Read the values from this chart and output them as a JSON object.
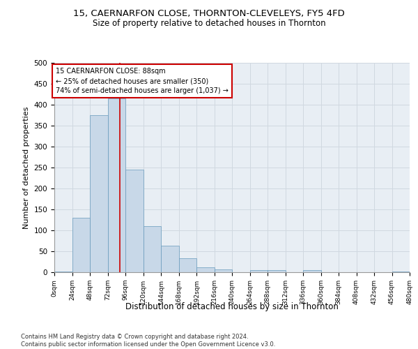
{
  "title1": "15, CAERNARFON CLOSE, THORNTON-CLEVELEYS, FY5 4FD",
  "title2": "Size of property relative to detached houses in Thornton",
  "xlabel": "Distribution of detached houses by size in Thornton",
  "ylabel": "Number of detached properties",
  "footnote": "Contains HM Land Registry data © Crown copyright and database right 2024.\nContains public sector information licensed under the Open Government Licence v3.0.",
  "bin_edges": [
    0,
    24,
    48,
    72,
    96,
    120,
    144,
    168,
    192,
    216,
    240,
    264,
    288,
    312,
    336,
    360,
    384,
    408,
    432,
    456,
    480
  ],
  "bar_values": [
    2,
    130,
    375,
    415,
    245,
    110,
    63,
    33,
    12,
    7,
    0,
    5,
    5,
    0,
    5,
    0,
    0,
    0,
    0,
    2
  ],
  "bar_color": "#c8d8e8",
  "bar_edge_color": "#6699bb",
  "grid_color": "#d0d8e0",
  "bg_color": "#e8eef4",
  "property_size": 88,
  "red_line_color": "#cc0000",
  "annotation_text": "15 CAERNARFON CLOSE: 88sqm\n← 25% of detached houses are smaller (350)\n74% of semi-detached houses are larger (1,037) →",
  "annotation_box_color": "#ffffff",
  "annotation_box_edge": "#cc0000",
  "ylim": [
    0,
    500
  ],
  "yticks": [
    0,
    50,
    100,
    150,
    200,
    250,
    300,
    350,
    400,
    450,
    500
  ]
}
